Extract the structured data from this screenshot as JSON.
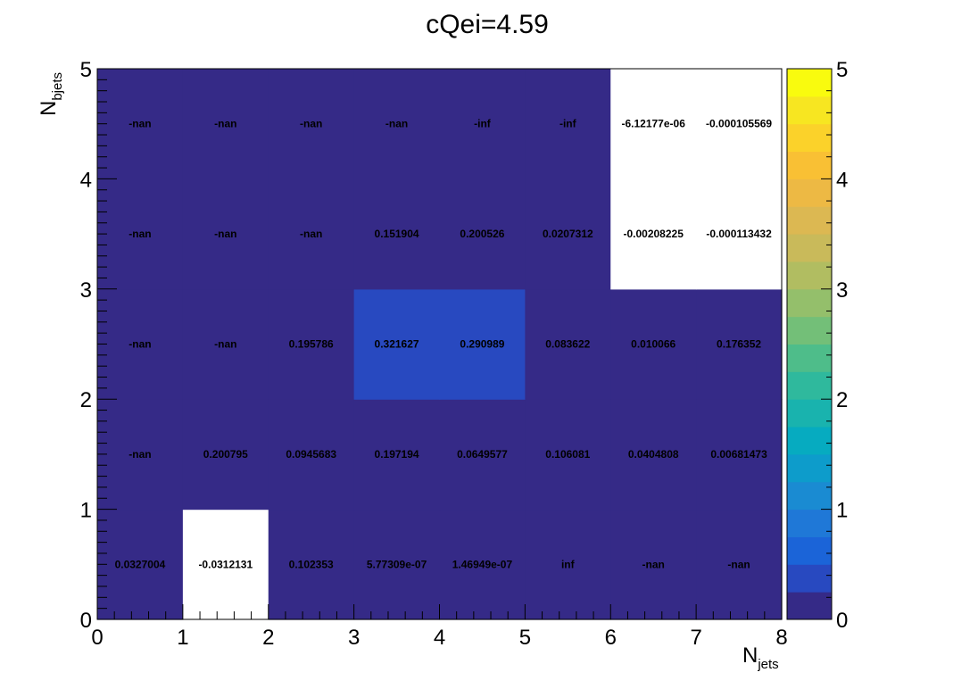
{
  "chart_data": {
    "type": "heatmap",
    "title": "cQei=4.59",
    "xlabel": {
      "main": "N",
      "sub": "jets"
    },
    "ylabel": {
      "main": "N",
      "sub": "bjets"
    },
    "xlim": [
      0,
      8
    ],
    "ylim": [
      0,
      5
    ],
    "x_ticks": [
      "0",
      "1",
      "2",
      "3",
      "4",
      "5",
      "6",
      "7",
      "8"
    ],
    "y_ticks": [
      "0",
      "1",
      "2",
      "3",
      "4",
      "5"
    ],
    "zlim": [
      0,
      5
    ],
    "z_ticks": [
      "0",
      "1",
      "2",
      "3",
      "4",
      "5"
    ],
    "colormap": "parula",
    "empty_cell_color": "#352a87",
    "cells": [
      [
        {
          "label": "0.0327004",
          "value": 0.0327004
        },
        {
          "label": "-0.0312131",
          "value": -0.0312131
        },
        {
          "label": "0.102353",
          "value": 0.102353
        },
        {
          "label": "5.77309e-07",
          "value": 5.77309e-07
        },
        {
          "label": "1.46949e-07",
          "value": 1.46949e-07
        },
        {
          "label": "inf",
          "value": null
        },
        {
          "label": "-nan",
          "value": null
        },
        {
          "label": "-nan",
          "value": null
        }
      ],
      [
        {
          "label": "-nan",
          "value": null
        },
        {
          "label": "0.200795",
          "value": 0.200795
        },
        {
          "label": "0.0945683",
          "value": 0.0945683
        },
        {
          "label": "0.197194",
          "value": 0.197194
        },
        {
          "label": "0.0649577",
          "value": 0.0649577
        },
        {
          "label": "0.106081",
          "value": 0.106081
        },
        {
          "label": "0.0404808",
          "value": 0.0404808
        },
        {
          "label": "0.00681473",
          "value": 0.00681473
        }
      ],
      [
        {
          "label": "-nan",
          "value": null
        },
        {
          "label": "-nan",
          "value": null
        },
        {
          "label": "0.195786",
          "value": 0.195786
        },
        {
          "label": "0.321627",
          "value": 0.321627
        },
        {
          "label": "0.290989",
          "value": 0.290989
        },
        {
          "label": "0.083622",
          "value": 0.083622
        },
        {
          "label": "0.010066",
          "value": 0.010066
        },
        {
          "label": "0.176352",
          "value": 0.176352
        }
      ],
      [
        {
          "label": "-nan",
          "value": null
        },
        {
          "label": "-nan",
          "value": null
        },
        {
          "label": "-nan",
          "value": null
        },
        {
          "label": "0.151904",
          "value": 0.151904
        },
        {
          "label": "0.200526",
          "value": 0.200526
        },
        {
          "label": "0.0207312",
          "value": 0.0207312
        },
        {
          "label": "-0.00208225",
          "value": -0.00208225
        },
        {
          "label": "-0.000113432",
          "value": -0.000113432
        }
      ],
      [
        {
          "label": "-nan",
          "value": null
        },
        {
          "label": "-nan",
          "value": null
        },
        {
          "label": "-nan",
          "value": null
        },
        {
          "label": "-nan",
          "value": null
        },
        {
          "label": "-inf",
          "value": null
        },
        {
          "label": "-inf",
          "value": null
        },
        {
          "label": "-6.12177e-06",
          "value": -6.12177e-06
        },
        {
          "label": "-0.000105569",
          "value": -0.000105569
        }
      ]
    ]
  }
}
